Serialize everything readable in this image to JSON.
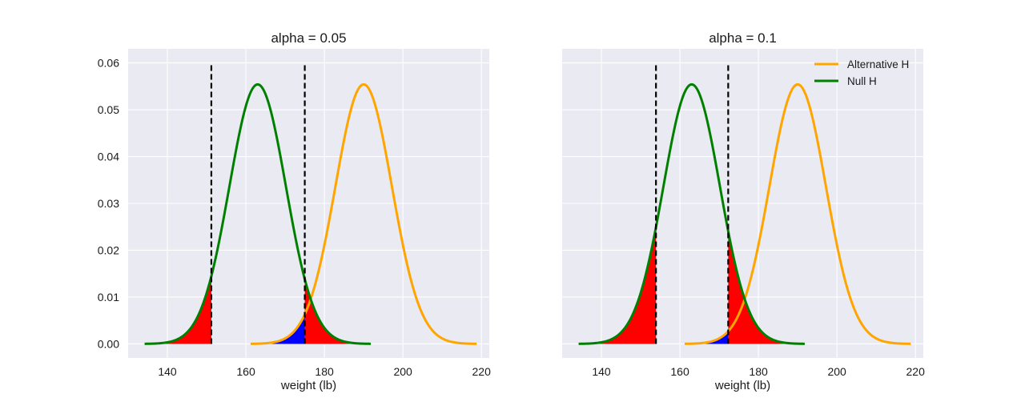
{
  "figure": {
    "colors": {
      "background": "#eaeaf2",
      "grid": "#ffffff",
      "alternative": "#ffa500",
      "null": "#008000",
      "alpha_region": "#ff0000",
      "beta_region": "#0000ff",
      "critical_line": "#000000"
    }
  },
  "chart_data": [
    {
      "type": "line",
      "title": "alpha = 0.05",
      "xlabel": "weight (lb)",
      "ylabel": "",
      "xlim": [
        130,
        222
      ],
      "ylim": [
        -0.003,
        0.063
      ],
      "x_ticks": [
        140,
        160,
        180,
        200,
        220
      ],
      "y_ticks": [
        0.0,
        0.01,
        0.02,
        0.03,
        0.04,
        0.05,
        0.06
      ],
      "y_tick_labels": [
        "0.00",
        "0.01",
        "0.02",
        "0.03",
        "0.04",
        "0.05",
        "0.06"
      ],
      "grid": true,
      "series": [
        {
          "name": "Alternative H",
          "color": "orange",
          "mean": 190,
          "sd": 7.2,
          "x_range": [
            161.2,
            218.8
          ]
        },
        {
          "name": "Null H",
          "color": "green",
          "mean": 163,
          "sd": 7.2,
          "x_range": [
            134.2,
            191.8
          ]
        }
      ],
      "critical_values": [
        151.2,
        175.0
      ],
      "shaded_regions": [
        {
          "type": "alpha",
          "color": "red",
          "curve": "Null H",
          "x_from": 134.2,
          "x_to": 151.2
        },
        {
          "type": "alpha",
          "color": "red",
          "curve": "Null H",
          "x_from": 175.0,
          "x_to": 191.8
        },
        {
          "type": "beta",
          "color": "blue",
          "curve": "Alternative H",
          "x_from": 161.2,
          "x_to": 175.0
        }
      ],
      "legend": null
    },
    {
      "type": "line",
      "title": "alpha = 0.1",
      "xlabel": "weight (lb)",
      "ylabel": "",
      "xlim": [
        130,
        222
      ],
      "ylim": [
        -0.003,
        0.063
      ],
      "x_ticks": [
        140,
        160,
        180,
        200,
        220
      ],
      "y_ticks": [
        0.0,
        0.01,
        0.02,
        0.03,
        0.04,
        0.05,
        0.06
      ],
      "y_tick_labels": [],
      "grid": true,
      "series": [
        {
          "name": "Alternative H",
          "color": "orange",
          "mean": 190,
          "sd": 7.2,
          "x_range": [
            161.2,
            218.8
          ]
        },
        {
          "name": "Null H",
          "color": "green",
          "mean": 163,
          "sd": 7.2,
          "x_range": [
            134.2,
            191.8
          ]
        }
      ],
      "critical_values": [
        153.9,
        172.3
      ],
      "shaded_regions": [
        {
          "type": "alpha",
          "color": "red",
          "curve": "Null H",
          "x_from": 134.2,
          "x_to": 153.9
        },
        {
          "type": "alpha",
          "color": "red",
          "curve": "Null H",
          "x_from": 172.3,
          "x_to": 191.8
        },
        {
          "type": "beta",
          "color": "blue",
          "curve": "Alternative H",
          "x_from": 161.2,
          "x_to": 172.3
        }
      ],
      "legend": {
        "placement": "top-right",
        "entries": [
          "Alternative H",
          "Null H"
        ]
      }
    }
  ]
}
